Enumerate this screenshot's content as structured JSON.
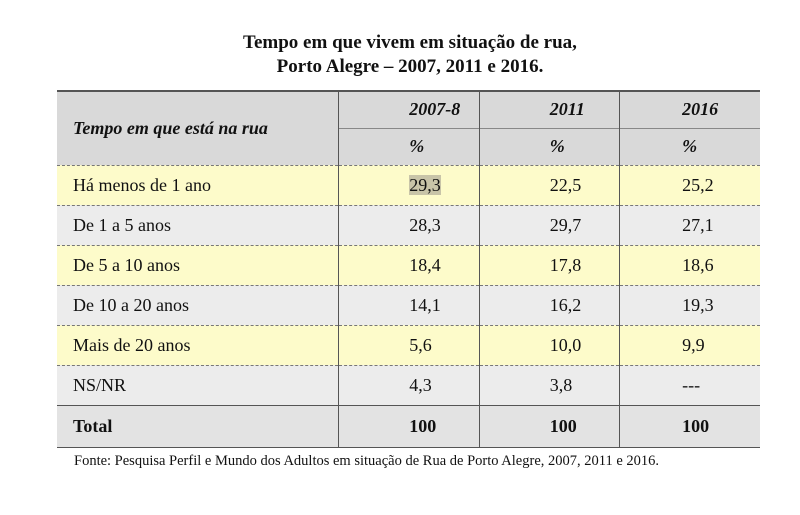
{
  "header": {
    "title": [
      "Tempo em que vivem em situação de rua,",
      "Porto Alegre – 2007, 2011 e 2016."
    ]
  },
  "table": {
    "corner": "Tempo em que está na rua",
    "columns": [
      "2007-8",
      "2011",
      "2016"
    ],
    "units": [
      "%",
      "%",
      "%"
    ],
    "rows": [
      [
        "Há menos de 1 ano",
        "29,3",
        "22,5",
        "25,2"
      ],
      [
        "De 1 a 5 anos",
        "28,3",
        "29,7",
        "27,1"
      ],
      [
        "De 5 a 10 anos",
        "18,4",
        "17,8",
        "18,6"
      ],
      [
        "De 10 a 20 anos",
        "14,1",
        "16,2",
        "19,3"
      ],
      [
        "Mais de 20 anos",
        "5,6",
        "10,0",
        "9,9"
      ],
      [
        "NS/NR",
        "4,3",
        "3,8",
        "---"
      ]
    ],
    "total": [
      "Total",
      "100",
      "100",
      "100"
    ]
  },
  "footer": {
    "source": "Fonte: Pesquisa Perfil e Mundo dos Adultos em situação de Rua de Porto Alegre, 2007, 2011 e 2016."
  }
}
